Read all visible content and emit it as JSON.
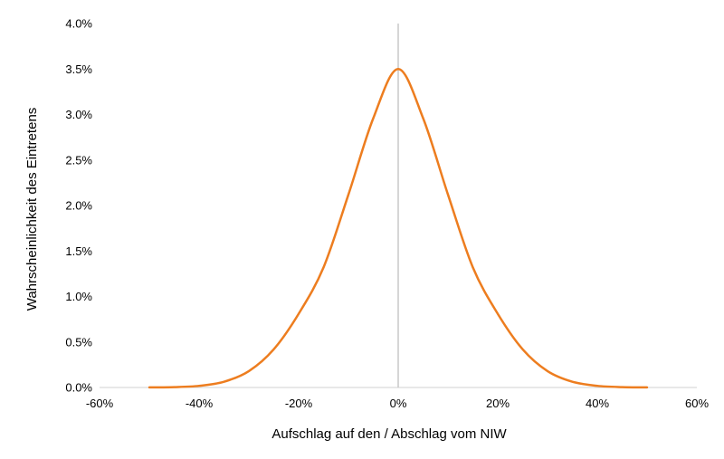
{
  "chart_data": {
    "type": "line",
    "title": "",
    "xlabel": "Aufschlag auf den / Abschlag vom NIW",
    "ylabel": "Wahrscheinlichkeit des Eintretens",
    "xlim": [
      -60,
      60
    ],
    "ylim": [
      0,
      4.0
    ],
    "x_ticks": [
      "-60%",
      "-40%",
      "-20%",
      "0%",
      "20%",
      "40%",
      "60%"
    ],
    "y_ticks": [
      "0.0%",
      "0.5%",
      "1.0%",
      "1.5%",
      "2.0%",
      "2.5%",
      "3.0%",
      "3.5%",
      "4.0%"
    ],
    "grid": false,
    "legend": "none",
    "reference_line": {
      "x": 0,
      "color": "#c8c8c8"
    },
    "series": [
      {
        "color": "#ed7d1f",
        "x": [
          -50,
          -45,
          -40,
          -35,
          -30,
          -25,
          -20,
          -15,
          -10,
          -5,
          0,
          5,
          10,
          15,
          20,
          25,
          30,
          35,
          40,
          45,
          50
        ],
        "y": [
          0.001,
          0.004,
          0.018,
          0.063,
          0.18,
          0.42,
          0.81,
          1.32,
          2.12,
          2.96,
          3.5,
          2.96,
          2.12,
          1.32,
          0.81,
          0.42,
          0.18,
          0.063,
          0.018,
          0.004,
          0.001
        ]
      }
    ]
  }
}
